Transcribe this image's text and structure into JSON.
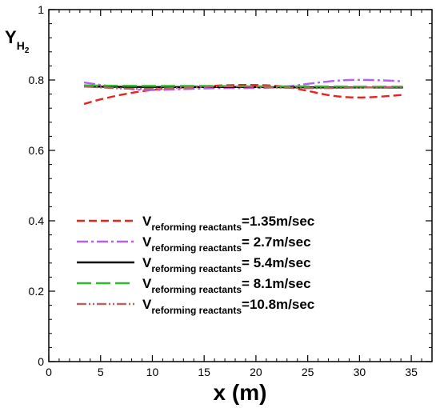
{
  "chart_data": {
    "type": "line",
    "xlabel": "x (m)",
    "ylabel": "Y_H2",
    "ylabel_main": "Y",
    "ylabel_sub": "H",
    "ylabel_sub2": "2",
    "xlim": [
      0,
      37
    ],
    "ylim": [
      0,
      1
    ],
    "xticks": [
      0,
      5,
      10,
      15,
      20,
      25,
      30,
      35
    ],
    "yticks": [
      0,
      0.2,
      0.4,
      0.6,
      0.8,
      1
    ],
    "ytick_labels": [
      "0",
      "0.2",
      "0.4",
      "0.6",
      "0.8",
      "1"
    ],
    "grid": false,
    "legend_position": "center-left",
    "series": [
      {
        "name": "V_reforming reactants=1.35m/sec",
        "legend_main": "V",
        "legend_sub": "reforming reactants",
        "legend_value": "=1.35m/sec",
        "color": "#e8231f",
        "dash": "10,5",
        "x": [
          3.4,
          5,
          7,
          9,
          11,
          13,
          15,
          17,
          19,
          21,
          23,
          25,
          27,
          29,
          31,
          33,
          34.2
        ],
        "y": [
          0.732,
          0.745,
          0.758,
          0.768,
          0.775,
          0.779,
          0.782,
          0.785,
          0.786,
          0.785,
          0.78,
          0.769,
          0.757,
          0.751,
          0.751,
          0.755,
          0.758
        ]
      },
      {
        "name": "V_reforming reactants=2.7m/sec",
        "legend_main": "V",
        "legend_sub": "reforming reactants",
        "legend_value": "=  2.7m/sec",
        "color": "#b75ff0",
        "dash": "14,4,3,4",
        "x": [
          3.4,
          5,
          7,
          9,
          11,
          13,
          15,
          17,
          19,
          21,
          23,
          25,
          27,
          29,
          31,
          33,
          34.2
        ],
        "y": [
          0.793,
          0.786,
          0.778,
          0.772,
          0.772,
          0.774,
          0.776,
          0.777,
          0.777,
          0.778,
          0.782,
          0.789,
          0.796,
          0.8,
          0.8,
          0.798,
          0.796
        ]
      },
      {
        "name": "V_reforming reactants=5.4m/sec",
        "legend_main": "V",
        "legend_sub": "reforming reactants",
        "legend_value": "=  5.4m/sec",
        "color": "#000000",
        "dash": "",
        "x": [
          3.4,
          5,
          10,
          15,
          20,
          25,
          30,
          34.2
        ],
        "y": [
          0.782,
          0.781,
          0.78,
          0.78,
          0.78,
          0.779,
          0.779,
          0.779
        ]
      },
      {
        "name": "V_reforming reactants=8.1m/sec",
        "legend_main": "V",
        "legend_sub": "reforming reactants",
        "legend_value": "=  8.1m/sec",
        "color": "#2db82d",
        "dash": "18,6",
        "x": [
          3.4,
          5,
          10,
          15,
          20,
          25,
          30,
          34.2
        ],
        "y": [
          0.785,
          0.784,
          0.783,
          0.783,
          0.782,
          0.782,
          0.781,
          0.781
        ]
      },
      {
        "name": "V_reforming reactants=10.8m/sec",
        "legend_main": "V",
        "legend_sub": "reforming reactants",
        "legend_value": "=10.8m/sec",
        "color": "#b5655a",
        "dash": "12,3,2,3,2,3",
        "x": [
          3.4,
          5,
          7,
          9,
          11,
          13,
          15,
          17,
          19,
          21,
          23,
          25,
          27,
          29,
          31,
          33,
          34.2
        ],
        "y": [
          0.781,
          0.779,
          0.776,
          0.775,
          0.776,
          0.778,
          0.78,
          0.782,
          0.781,
          0.779,
          0.778,
          0.777,
          0.777,
          0.778,
          0.779,
          0.78,
          0.78
        ]
      }
    ]
  }
}
